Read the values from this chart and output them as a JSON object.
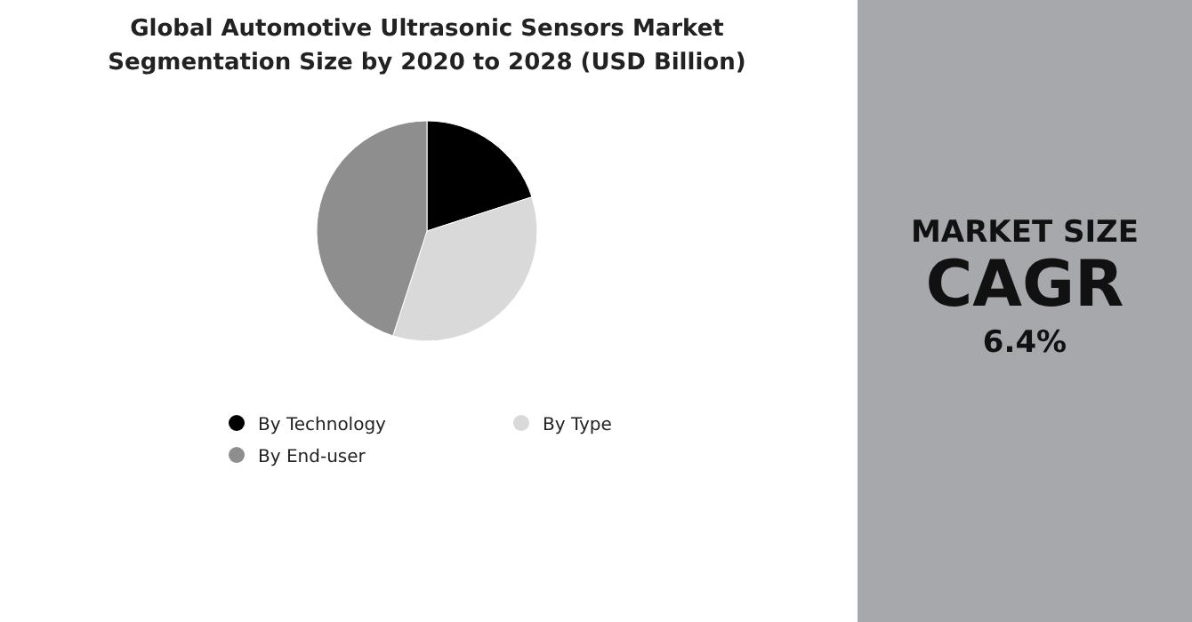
{
  "chart_data": [
    {
      "type": "pie",
      "title": "Global Automotive Ultrasonic Sensors Market Segmentation Size by 2020 to 2028 (USD Billion)",
      "categories": [
        "By Technology",
        "By Type",
        "By End-user"
      ],
      "values": [
        20,
        35,
        45
      ],
      "colors": [
        "#000000",
        "#d9d9d9",
        "#8e8e8e"
      ],
      "legend": "bottom"
    },
    {
      "type": "other",
      "title": "MARKET SIZE",
      "subtitle": "CAGR",
      "annotations": [
        "6.4%"
      ]
    }
  ]
}
